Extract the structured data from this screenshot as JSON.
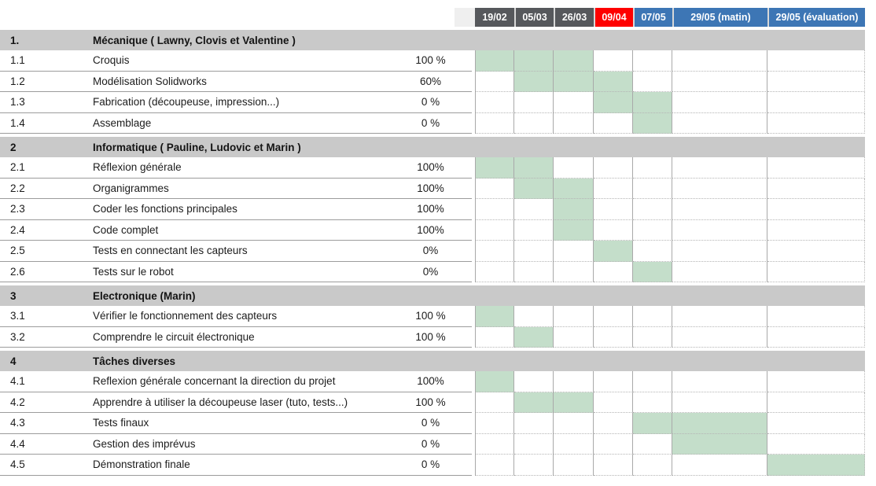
{
  "colors": {
    "done_cell": "#c4deca",
    "header_gray": "#56585c",
    "header_red": "#fe0000",
    "header_blue": "#3d76b5",
    "section_row_bg": "#c9c9c9"
  },
  "header": {
    "columns": [
      {
        "label": "19/02",
        "color": "#56585c"
      },
      {
        "label": "05/03",
        "color": "#56585c"
      },
      {
        "label": "26/03",
        "color": "#56585c"
      },
      {
        "label": "09/04",
        "color": "#fe0000"
      },
      {
        "label": "07/05",
        "color": "#3d76b5"
      },
      {
        "label": "29/05 (matin)",
        "color": "#3d76b5"
      },
      {
        "label": "29/05 (évaluation)",
        "color": "#3d76b5"
      }
    ]
  },
  "sections": [
    {
      "number": "1.",
      "title": "Mécanique ( Lawny, Clovis et Valentine )",
      "tasks": [
        {
          "number": "1.1",
          "name": "Croquis",
          "progress": "100 %",
          "cells": [
            1,
            1,
            1,
            0,
            0,
            0,
            0
          ]
        },
        {
          "number": "1.2",
          "name": "Modélisation Solidworks",
          "progress": "60%",
          "cells": [
            0,
            1,
            1,
            1,
            0,
            0,
            0
          ]
        },
        {
          "number": "1.3",
          "name": "Fabrication (découpeuse, impression...)",
          "progress": "0 %",
          "cells": [
            0,
            0,
            0,
            1,
            1,
            0,
            0
          ]
        },
        {
          "number": "1.4",
          "name": "Assemblage",
          "progress": "0 %",
          "cells": [
            0,
            0,
            0,
            0,
            1,
            0,
            0
          ]
        }
      ]
    },
    {
      "number": "2",
      "title": "Informatique ( Pauline, Ludovic et Marin )",
      "tasks": [
        {
          "number": "2.1",
          "name": "Réflexion générale",
          "progress": "100%",
          "cells": [
            1,
            1,
            0,
            0,
            0,
            0,
            0
          ]
        },
        {
          "number": "2.2",
          "name": "Organigrammes",
          "progress": "100%",
          "cells": [
            0,
            1,
            1,
            0,
            0,
            0,
            0
          ]
        },
        {
          "number": "2.3",
          "name": "Coder les fonctions principales",
          "progress": "100%",
          "cells": [
            0,
            0,
            1,
            0,
            0,
            0,
            0
          ]
        },
        {
          "number": "2.4",
          "name": "Code complet",
          "progress": "100%",
          "cells": [
            0,
            0,
            1,
            0,
            0,
            0,
            0
          ]
        },
        {
          "number": "2.5",
          "name": "Tests en connectant les capteurs",
          "progress": "0%",
          "cells": [
            0,
            0,
            0,
            1,
            0,
            0,
            0
          ]
        },
        {
          "number": "2.6",
          "name": "Tests sur le robot",
          "progress": "0%",
          "cells": [
            0,
            0,
            0,
            0,
            1,
            0,
            0
          ]
        }
      ]
    },
    {
      "number": "3",
      "title": "Electronique (Marin)",
      "tasks": [
        {
          "number": "3.1",
          "name": "Vérifier le fonctionnement des capteurs",
          "progress": "100 %",
          "cells": [
            1,
            0,
            0,
            0,
            0,
            0,
            0
          ]
        },
        {
          "number": "3.2",
          "name": "Comprendre le circuit électronique",
          "progress": "100 %",
          "cells": [
            0,
            1,
            0,
            0,
            0,
            0,
            0
          ]
        }
      ]
    },
    {
      "number": "4",
      "title": "Tâches diverses",
      "tasks": [
        {
          "number": "4.1",
          "name": "Reflexion générale concernant la direction du projet",
          "progress": "100%",
          "cells": [
            1,
            0,
            0,
            0,
            0,
            0,
            0
          ]
        },
        {
          "number": "4.2",
          "name": "Apprendre à utiliser la découpeuse laser (tuto, tests...)",
          "progress": "100 %",
          "cells": [
            0,
            1,
            1,
            0,
            0,
            0,
            0
          ]
        },
        {
          "number": "4.3",
          "name": "Tests finaux",
          "progress": "0 %",
          "cells": [
            0,
            0,
            0,
            0,
            1,
            1,
            0
          ]
        },
        {
          "number": "4.4",
          "name": "Gestion des imprévus",
          "progress": "0 %",
          "cells": [
            0,
            0,
            0,
            0,
            0,
            1,
            0
          ]
        },
        {
          "number": "4.5",
          "name": "Démonstration finale",
          "progress": "0 %",
          "cells": [
            0,
            0,
            0,
            0,
            0,
            0,
            1
          ]
        }
      ]
    }
  ],
  "chart_data": {
    "type": "table",
    "subtype": "gantt",
    "columns": [
      "19/02",
      "05/03",
      "26/03",
      "09/04",
      "07/05",
      "29/05 (matin)",
      "29/05 (évaluation)"
    ],
    "column_colors": [
      "#56585c",
      "#56585c",
      "#56585c",
      "#fe0000",
      "#3d76b5",
      "#3d76b5",
      "#3d76b5"
    ],
    "fill_color": "#c4deca",
    "rows": [
      {
        "id": "1.",
        "label": "Mécanique ( Lawny, Clovis et Valentine )",
        "kind": "section"
      },
      {
        "id": "1.1",
        "label": "Croquis",
        "progress": "100 %",
        "scheduled": [
          "19/02",
          "05/03",
          "26/03"
        ]
      },
      {
        "id": "1.2",
        "label": "Modélisation Solidworks",
        "progress": "60%",
        "scheduled": [
          "05/03",
          "26/03",
          "09/04"
        ]
      },
      {
        "id": "1.3",
        "label": "Fabrication (découpeuse, impression...)",
        "progress": "0 %",
        "scheduled": [
          "09/04",
          "07/05"
        ]
      },
      {
        "id": "1.4",
        "label": "Assemblage",
        "progress": "0 %",
        "scheduled": [
          "07/05"
        ]
      },
      {
        "id": "2",
        "label": "Informatique ( Pauline, Ludovic et Marin )",
        "kind": "section"
      },
      {
        "id": "2.1",
        "label": "Réflexion générale",
        "progress": "100%",
        "scheduled": [
          "19/02",
          "05/03"
        ]
      },
      {
        "id": "2.2",
        "label": "Organigrammes",
        "progress": "100%",
        "scheduled": [
          "05/03",
          "26/03"
        ]
      },
      {
        "id": "2.3",
        "label": "Coder les fonctions principales",
        "progress": "100%",
        "scheduled": [
          "26/03"
        ]
      },
      {
        "id": "2.4",
        "label": "Code complet",
        "progress": "100%",
        "scheduled": [
          "26/03"
        ]
      },
      {
        "id": "2.5",
        "label": "Tests en connectant les capteurs",
        "progress": "0%",
        "scheduled": [
          "09/04"
        ]
      },
      {
        "id": "2.6",
        "label": "Tests sur le robot",
        "progress": "0%",
        "scheduled": [
          "07/05"
        ]
      },
      {
        "id": "3",
        "label": "Electronique (Marin)",
        "kind": "section"
      },
      {
        "id": "3.1",
        "label": "Vérifier le fonctionnement des capteurs",
        "progress": "100 %",
        "scheduled": [
          "19/02"
        ]
      },
      {
        "id": "3.2",
        "label": "Comprendre le circuit électronique",
        "progress": "100 %",
        "scheduled": [
          "05/03"
        ]
      },
      {
        "id": "4",
        "label": "Tâches diverses",
        "kind": "section"
      },
      {
        "id": "4.1",
        "label": "Reflexion générale concernant la direction du projet",
        "progress": "100%",
        "scheduled": [
          "19/02"
        ]
      },
      {
        "id": "4.2",
        "label": "Apprendre à utiliser la découpeuse laser (tuto, tests...)",
        "progress": "100 %",
        "scheduled": [
          "05/03",
          "26/03"
        ]
      },
      {
        "id": "4.3",
        "label": "Tests finaux",
        "progress": "0 %",
        "scheduled": [
          "07/05",
          "29/05 (matin)"
        ]
      },
      {
        "id": "4.4",
        "label": "Gestion des imprévus",
        "progress": "0 %",
        "scheduled": [
          "29/05 (matin)"
        ]
      },
      {
        "id": "4.5",
        "label": "Démonstration finale",
        "progress": "0 %",
        "scheduled": [
          "29/05 (évaluation)"
        ]
      }
    ]
  }
}
